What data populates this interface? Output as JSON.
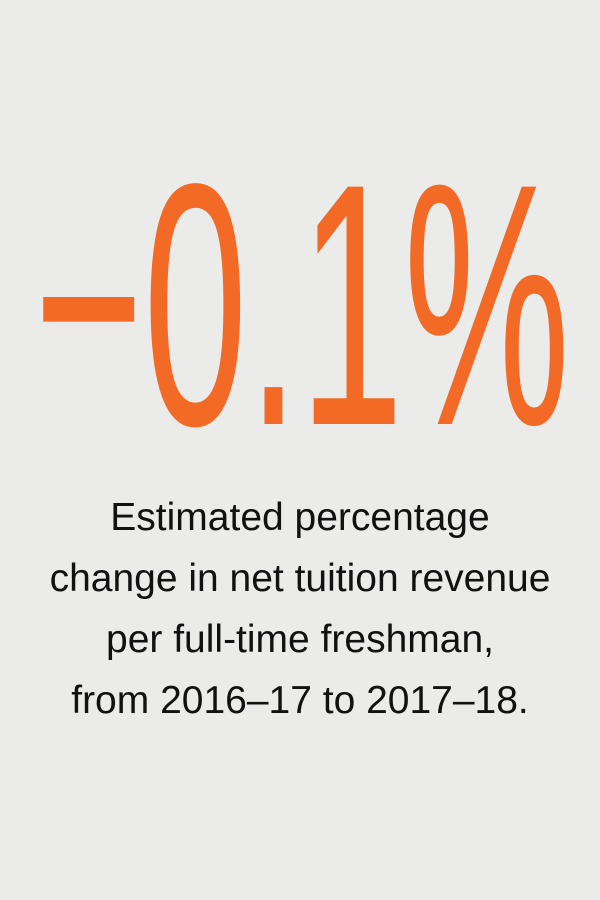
{
  "stat": {
    "value": "−0.1%",
    "caption": [
      "Estimated percentage",
      "change in net tuition revenue",
      "per full-time freshman,",
      "from 2016–17 to 2017–18."
    ]
  }
}
